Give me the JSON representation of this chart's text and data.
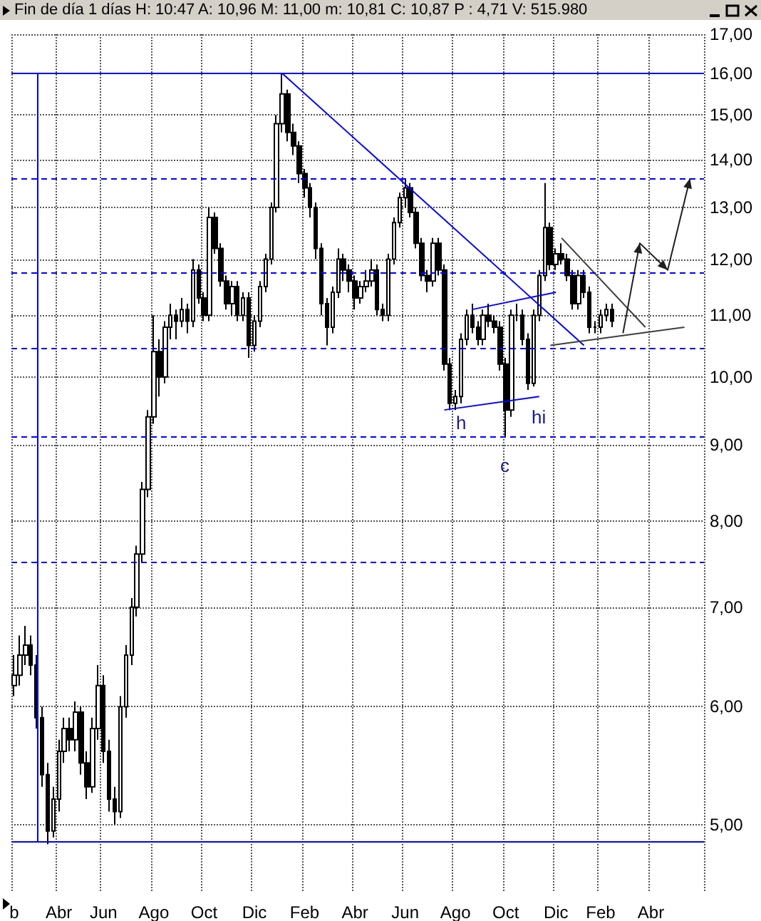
{
  "chart_data": {
    "type": "candlestick",
    "title": "Fin de día 1 días H: 10:47 A: 10,96 M: 11,00 m: 10,81 C: 10,87 P : 4,71 V: 515.980",
    "color": "#000000",
    "categories": [
      "b",
      null,
      null,
      null,
      null,
      null,
      null,
      null,
      "Abr",
      null,
      null,
      null,
      null,
      null,
      null,
      null,
      "Jun",
      null,
      null,
      null,
      null,
      null,
      null,
      null,
      null,
      "Ago",
      null,
      null,
      null,
      null,
      null,
      null,
      null,
      null,
      "Oct",
      null,
      null,
      null,
      null,
      null,
      null,
      null,
      null,
      "Dic",
      null,
      null,
      null,
      null,
      null,
      null,
      null,
      null,
      "Feb",
      null,
      null,
      null,
      null,
      null,
      null,
      null,
      null,
      "Abr",
      null,
      null,
      null,
      null,
      null,
      null,
      null,
      null,
      "Jun",
      null,
      null,
      null,
      null,
      null,
      null,
      null,
      null,
      "Ago",
      null,
      null,
      null,
      null,
      null,
      null,
      null,
      null,
      "Oct",
      null,
      null,
      null,
      null,
      null,
      null,
      null,
      null,
      "Dic",
      null,
      null,
      null,
      null,
      null,
      null,
      null,
      "Feb",
      null,
      null,
      null,
      null,
      null,
      null,
      null,
      null,
      "Abr",
      null,
      null,
      null,
      null,
      null,
      null,
      null,
      null,
      null
    ],
    "ohlc": [
      [
        6.2,
        6.5,
        6.1,
        6.3
      ],
      [
        6.3,
        6.7,
        6.2,
        6.5
      ],
      [
        6.5,
        6.8,
        6.4,
        6.6
      ],
      [
        6.6,
        6.7,
        6.3,
        6.4
      ],
      [
        6.4,
        6.5,
        5.8,
        5.9
      ],
      [
        5.9,
        6.0,
        5.3,
        5.4
      ],
      [
        5.4,
        5.5,
        4.85,
        4.95
      ],
      [
        4.95,
        5.3,
        4.9,
        5.2
      ],
      [
        5.2,
        5.7,
        5.1,
        5.6
      ],
      [
        5.6,
        5.9,
        5.5,
        5.8
      ],
      [
        5.8,
        5.9,
        5.6,
        5.7
      ],
      [
        5.7,
        6.05,
        5.6,
        5.95
      ],
      [
        5.95,
        6.0,
        5.4,
        5.5
      ],
      [
        5.5,
        5.6,
        5.2,
        5.3
      ],
      [
        5.3,
        5.9,
        5.25,
        5.8
      ],
      [
        5.8,
        6.4,
        5.7,
        6.2
      ],
      [
        6.2,
        6.3,
        5.5,
        5.6
      ],
      [
        5.6,
        5.7,
        5.1,
        5.2
      ],
      [
        5.2,
        5.3,
        5.0,
        5.1
      ],
      [
        5.1,
        6.1,
        5.05,
        6.0
      ],
      [
        6.0,
        6.6,
        5.9,
        6.5
      ],
      [
        6.5,
        7.1,
        6.4,
        7.0
      ],
      [
        7.0,
        7.7,
        6.9,
        7.6
      ],
      [
        7.6,
        8.5,
        7.5,
        8.4
      ],
      [
        8.4,
        9.5,
        8.3,
        9.4
      ],
      [
        9.4,
        11.0,
        9.3,
        10.4
      ],
      [
        10.4,
        10.6,
        9.7,
        10.0
      ],
      [
        10.0,
        10.9,
        9.9,
        10.8
      ],
      [
        10.8,
        11.2,
        10.6,
        11.0
      ],
      [
        11.0,
        11.1,
        10.6,
        10.9
      ],
      [
        10.9,
        11.3,
        10.8,
        11.1
      ],
      [
        11.1,
        11.2,
        10.7,
        10.9
      ],
      [
        10.9,
        12.0,
        10.8,
        11.8
      ],
      [
        11.8,
        11.9,
        11.2,
        11.3
      ],
      [
        11.3,
        11.4,
        10.9,
        11.0
      ],
      [
        11.0,
        13.0,
        10.9,
        12.8
      ],
      [
        12.8,
        12.9,
        12.1,
        12.2
      ],
      [
        12.2,
        12.3,
        11.5,
        11.6
      ],
      [
        11.6,
        11.7,
        11.1,
        11.2
      ],
      [
        11.2,
        11.6,
        11.0,
        11.5
      ],
      [
        11.5,
        11.6,
        10.9,
        11.0
      ],
      [
        11.0,
        11.4,
        10.9,
        11.3
      ],
      [
        11.3,
        11.4,
        10.3,
        10.5
      ],
      [
        10.5,
        11.0,
        10.4,
        10.9
      ],
      [
        10.9,
        11.6,
        10.8,
        11.5
      ],
      [
        11.5,
        12.1,
        11.4,
        12.0
      ],
      [
        12.0,
        13.1,
        11.9,
        13.0
      ],
      [
        13.0,
        15.0,
        12.9,
        14.8
      ],
      [
        14.8,
        16.0,
        14.6,
        15.5
      ],
      [
        15.5,
        15.6,
        14.4,
        14.6
      ],
      [
        14.6,
        14.8,
        14.1,
        14.3
      ],
      [
        14.3,
        14.4,
        13.5,
        13.7
      ],
      [
        13.7,
        13.8,
        13.2,
        13.4
      ],
      [
        13.4,
        13.5,
        12.8,
        13.0
      ],
      [
        13.0,
        13.1,
        12.0,
        12.2
      ],
      [
        12.2,
        12.3,
        11.0,
        11.2
      ],
      [
        11.2,
        11.3,
        10.5,
        10.8
      ],
      [
        10.8,
        11.5,
        10.7,
        11.4
      ],
      [
        11.4,
        12.2,
        11.3,
        12.0
      ],
      [
        12.0,
        12.1,
        11.6,
        11.8
      ],
      [
        11.8,
        11.9,
        11.4,
        11.6
      ],
      [
        11.6,
        11.7,
        11.1,
        11.3
      ],
      [
        11.3,
        11.6,
        11.2,
        11.5
      ],
      [
        11.5,
        11.8,
        11.4,
        11.6
      ],
      [
        11.6,
        12.0,
        11.5,
        11.8
      ],
      [
        11.8,
        11.9,
        11.0,
        11.1
      ],
      [
        11.1,
        11.2,
        10.9,
        11.0
      ],
      [
        11.0,
        12.1,
        10.9,
        12.0
      ],
      [
        12.0,
        12.8,
        11.9,
        12.7
      ],
      [
        12.7,
        13.3,
        12.6,
        13.2
      ],
      [
        13.2,
        13.6,
        13.0,
        13.4
      ],
      [
        13.4,
        13.5,
        12.8,
        12.9
      ],
      [
        12.9,
        13.0,
        12.2,
        12.3
      ],
      [
        12.3,
        12.4,
        11.6,
        11.7
      ],
      [
        11.7,
        11.8,
        11.4,
        11.6
      ],
      [
        11.6,
        12.4,
        11.5,
        12.3
      ],
      [
        12.3,
        12.4,
        11.7,
        11.8
      ],
      [
        11.8,
        11.9,
        10.1,
        10.2
      ],
      [
        10.2,
        10.3,
        9.5,
        9.6
      ],
      [
        9.6,
        9.8,
        9.5,
        9.7
      ],
      [
        9.7,
        10.7,
        9.6,
        10.6
      ],
      [
        10.6,
        11.1,
        10.5,
        11.0
      ],
      [
        11.0,
        11.2,
        10.7,
        10.8
      ],
      [
        10.8,
        10.9,
        10.5,
        10.6
      ],
      [
        10.6,
        11.1,
        10.5,
        11.0
      ],
      [
        11.0,
        11.2,
        10.8,
        10.9
      ],
      [
        10.9,
        11.0,
        10.7,
        10.8
      ],
      [
        10.8,
        10.9,
        10.1,
        10.2
      ],
      [
        10.2,
        10.3,
        9.1,
        9.5
      ],
      [
        9.5,
        11.1,
        9.4,
        11.0
      ],
      [
        11.0,
        11.2,
        10.9,
        11.0
      ],
      [
        11.0,
        11.1,
        10.5,
        10.6
      ],
      [
        10.6,
        10.7,
        9.8,
        9.9
      ],
      [
        9.9,
        11.1,
        9.85,
        11.0
      ],
      [
        11.0,
        11.8,
        10.9,
        11.7
      ],
      [
        11.7,
        13.5,
        11.6,
        12.6
      ],
      [
        12.6,
        12.7,
        11.8,
        11.9
      ],
      [
        11.9,
        12.2,
        11.8,
        12.1
      ],
      [
        12.1,
        12.3,
        11.9,
        12.0
      ],
      [
        12.0,
        12.1,
        11.6,
        11.7
      ],
      [
        11.7,
        11.8,
        11.1,
        11.2
      ],
      [
        11.2,
        11.8,
        11.1,
        11.7
      ],
      [
        11.7,
        11.8,
        11.3,
        11.4
      ],
      [
        11.4,
        11.5,
        10.7,
        10.8
      ],
      [
        10.8,
        10.9,
        10.7,
        10.8
      ],
      [
        10.8,
        11.1,
        10.7,
        11.0
      ],
      [
        11.0,
        11.2,
        10.9,
        11.1
      ],
      [
        11.1,
        11.2,
        10.8,
        10.9
      ],
      null,
      null,
      null,
      null,
      null,
      null,
      null,
      null,
      null,
      null,
      null,
      null,
      null,
      null,
      null,
      null
    ],
    "series": [
      {
        "type": "line",
        "color": "#0000ff",
        "values": [
          null,
          null,
          null,
          null,
          null,
          null,
          null,
          null,
          null,
          null,
          null,
          null,
          null,
          null,
          null,
          null,
          null,
          null,
          null,
          null,
          null,
          null,
          null,
          null,
          null,
          null,
          null,
          null,
          null,
          null,
          null,
          null,
          null,
          null,
          null,
          null,
          null,
          null,
          null,
          null,
          null,
          null,
          null,
          null,
          null,
          null,
          null,
          null,
          16,
          null,
          null,
          null,
          null,
          null,
          null,
          null,
          null,
          null,
          null,
          null,
          null,
          null,
          null,
          null,
          null,
          null,
          null,
          null,
          null,
          null,
          null,
          null,
          null,
          null,
          null,
          null,
          null,
          null,
          null,
          null,
          null,
          null,
          null,
          null,
          null,
          null,
          null,
          null,
          null,
          null,
          null,
          null,
          null,
          null,
          null,
          null,
          null,
          null,
          null,
          null,
          null,
          null,
          10.5,
          null,
          null,
          null,
          null,
          null,
          null,
          null,
          null,
          null,
          null,
          null,
          null,
          null,
          null,
          null,
          null,
          null,
          null,
          null,
          null,
          null
        ]
      },
      {
        "type": "line",
        "color": "#0000ff",
        "values": [
          null,
          null,
          null,
          null,
          null,
          null,
          null,
          null,
          null,
          null,
          null,
          null,
          null,
          null,
          null,
          null,
          null,
          null,
          null,
          null,
          null,
          null,
          null,
          null,
          null,
          null,
          null,
          null,
          null,
          null,
          null,
          null,
          null,
          null,
          null,
          null,
          null,
          null,
          null,
          null,
          null,
          null,
          null,
          null,
          null,
          null,
          null,
          null,
          null,
          null,
          null,
          null,
          null,
          null,
          null,
          null,
          null,
          null,
          null,
          null,
          null,
          null,
          null,
          null,
          null,
          null,
          null,
          null,
          null,
          null,
          null,
          null,
          null,
          null,
          null,
          null,
          null,
          9.5,
          null,
          null,
          null,
          null,
          null,
          null,
          null,
          null,
          null,
          null,
          null,
          null,
          null,
          null,
          null,
          null,
          9.7,
          null,
          null,
          null,
          null,
          null,
          null,
          null,
          null,
          null,
          null,
          null,
          null,
          null,
          null,
          null,
          null,
          null,
          null,
          null,
          null,
          null,
          null,
          null,
          null,
          null,
          null,
          null,
          null,
          null
        ]
      },
      {
        "type": "line",
        "color": "#0000ff",
        "values": [
          null,
          null,
          null,
          null,
          null,
          null,
          null,
          null,
          null,
          null,
          null,
          null,
          null,
          null,
          null,
          null,
          null,
          null,
          null,
          null,
          null,
          null,
          null,
          null,
          null,
          null,
          null,
          null,
          null,
          null,
          null,
          null,
          null,
          null,
          null,
          null,
          null,
          null,
          null,
          null,
          null,
          null,
          null,
          null,
          null,
          null,
          null,
          null,
          null,
          null,
          null,
          null,
          null,
          null,
          null,
          null,
          null,
          null,
          null,
          null,
          null,
          null,
          null,
          null,
          null,
          null,
          null,
          null,
          null,
          null,
          null,
          null,
          null,
          null,
          null,
          null,
          null,
          null,
          null,
          null,
          null,
          null,
          11.1,
          null,
          null,
          null,
          null,
          null,
          null,
          null,
          null,
          null,
          null,
          null,
          null,
          null,
          null,
          11.4,
          null,
          null,
          null,
          null,
          null,
          null,
          null,
          null,
          null,
          null,
          null,
          null,
          null,
          null,
          null,
          null,
          null,
          null,
          null,
          null,
          null,
          null,
          null,
          null,
          null,
          null
        ]
      },
      {
        "type": "line",
        "color": "#404040",
        "values": [
          null,
          null,
          null,
          null,
          null,
          null,
          null,
          null,
          null,
          null,
          null,
          null,
          null,
          null,
          null,
          null,
          null,
          null,
          null,
          null,
          null,
          null,
          null,
          null,
          null,
          null,
          null,
          null,
          null,
          null,
          null,
          null,
          null,
          null,
          null,
          null,
          null,
          null,
          null,
          null,
          null,
          null,
          null,
          null,
          null,
          null,
          null,
          null,
          null,
          null,
          null,
          null,
          null,
          null,
          null,
          null,
          null,
          null,
          null,
          null,
          null,
          null,
          null,
          null,
          null,
          null,
          null,
          null,
          null,
          null,
          null,
          null,
          null,
          null,
          null,
          null,
          null,
          null,
          null,
          null,
          null,
          null,
          null,
          null,
          null,
          null,
          null,
          null,
          null,
          null,
          null,
          null,
          null,
          null,
          null,
          null,
          null,
          null,
          12.4,
          null,
          null,
          null,
          null,
          null,
          null,
          null,
          null,
          null,
          null,
          null,
          null,
          null,
          null,
          10.8,
          null,
          null,
          null,
          null,
          null,
          null,
          null,
          null,
          null,
          null
        ]
      },
      {
        "type": "line",
        "color": "#404040",
        "values": [
          null,
          null,
          null,
          null,
          null,
          null,
          null,
          null,
          null,
          null,
          null,
          null,
          null,
          null,
          null,
          null,
          null,
          null,
          null,
          null,
          null,
          null,
          null,
          null,
          null,
          null,
          null,
          null,
          null,
          null,
          null,
          null,
          null,
          null,
          null,
          null,
          null,
          null,
          null,
          null,
          null,
          null,
          null,
          null,
          null,
          null,
          null,
          null,
          null,
          null,
          null,
          null,
          null,
          null,
          null,
          null,
          null,
          null,
          null,
          null,
          null,
          null,
          null,
          null,
          null,
          null,
          null,
          null,
          null,
          null,
          null,
          null,
          null,
          null,
          null,
          null,
          null,
          null,
          null,
          null,
          null,
          null,
          null,
          null,
          null,
          null,
          null,
          null,
          null,
          null,
          null,
          null,
          null,
          null,
          null,
          null,
          10.5,
          null,
          null,
          null,
          null,
          null,
          null,
          null,
          null,
          null,
          null,
          null,
          null,
          null,
          null,
          null,
          null,
          null,
          null,
          null,
          null,
          null,
          null,
          null,
          10.8,
          null,
          null,
          null
        ]
      },
      {
        "type": "line",
        "color": "#202020",
        "values": [
          null,
          null,
          null,
          null,
          null,
          null,
          null,
          null,
          null,
          null,
          null,
          null,
          null,
          null,
          null,
          null,
          null,
          null,
          null,
          null,
          null,
          null,
          null,
          null,
          null,
          null,
          null,
          null,
          null,
          null,
          null,
          null,
          null,
          null,
          null,
          null,
          null,
          null,
          null,
          null,
          null,
          null,
          null,
          null,
          null,
          null,
          null,
          null,
          null,
          null,
          null,
          null,
          null,
          null,
          null,
          null,
          null,
          null,
          null,
          null,
          null,
          null,
          null,
          null,
          null,
          null,
          null,
          null,
          null,
          null,
          null,
          null,
          null,
          null,
          null,
          null,
          null,
          null,
          null,
          null,
          null,
          null,
          null,
          null,
          null,
          null,
          null,
          null,
          null,
          null,
          null,
          null,
          null,
          null,
          null,
          null,
          null,
          null,
          null,
          null,
          null,
          null,
          null,
          null,
          null,
          null,
          null,
          null,
          null,
          10.7,
          null,
          null,
          12.3,
          null,
          null,
          null,
          null,
          11.8,
          null,
          null,
          null,
          13.6,
          null,
          null
        ]
      }
    ],
    "ylim": [
      4.5,
      17
    ],
    "log": "y",
    "yticks": [
      {
        "value": 5,
        "label": "5,00"
      },
      {
        "value": 6,
        "label": "6,00"
      },
      {
        "value": 7,
        "label": "7,00"
      },
      {
        "value": 8,
        "label": "8,00"
      },
      {
        "value": 9,
        "label": "9,00"
      },
      {
        "value": 10,
        "label": "10,00"
      },
      {
        "value": 11,
        "label": "11,00"
      },
      {
        "value": 12,
        "label": "12,00"
      },
      {
        "value": 13,
        "label": "13,00"
      },
      {
        "value": 14,
        "label": "14,00"
      },
      {
        "value": 15,
        "label": "15,00"
      },
      {
        "value": 16,
        "label": "16,00"
      },
      {
        "value": 17,
        "label": "17,00"
      }
    ],
    "grid": true,
    "ref_lines": [
      {
        "axis": "y",
        "value": 16,
        "color": "#0000ff",
        "line_style": "solid"
      },
      {
        "axis": "y",
        "value": 13.6,
        "color": "#0000ff",
        "line_style": "dashed"
      },
      {
        "axis": "y",
        "value": 11.75,
        "color": "#0000ff",
        "line_style": "dashed"
      },
      {
        "axis": "y",
        "value": 10.45,
        "color": "#0000ff",
        "line_style": "dashed"
      },
      {
        "axis": "y",
        "value": 9.12,
        "color": "#0000ff",
        "line_style": "dashed"
      },
      {
        "axis": "y",
        "value": 7.5,
        "color": "#0000ff",
        "line_style": "dashed"
      },
      {
        "axis": "y",
        "value": 4.87,
        "color": "#0000ff",
        "line_style": "solid"
      }
    ],
    "annotations": [
      "h",
      "c",
      "hi"
    ]
  }
}
